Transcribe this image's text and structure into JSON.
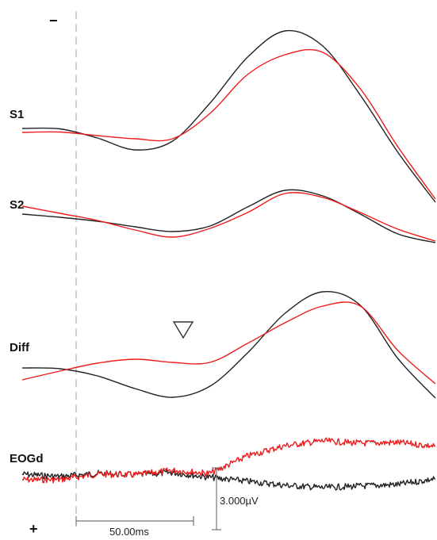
{
  "chart_data": {
    "type": "line",
    "title": "",
    "xlabel": "",
    "ylabel": "",
    "colors": {
      "series_a": "#222222",
      "series_b": "#ee1c1c",
      "stimulus_line": "#aaaaaa",
      "scale": "#777777"
    },
    "polarity": {
      "negative": "−",
      "positive": "+"
    },
    "scale_bars": {
      "time": "50.00ms",
      "amplitude": "3.000µV"
    },
    "channels": [
      {
        "name": "S1",
        "x": [
          0,
          50,
          100,
          150,
          200,
          250,
          300,
          350,
          400,
          450,
          500,
          550
        ],
        "series": [
          {
            "values": [
              0.0,
              -0.05,
              -1.2,
              -2.7,
              -1.6,
              3.2,
              9.0,
              12.3,
              10.4,
              4.2,
              -3.0,
              -9.3
            ]
          },
          {
            "values": [
              -0.5,
              -0.45,
              -0.9,
              -1.3,
              -1.3,
              1.9,
              6.8,
              9.3,
              9.6,
              5.0,
              -2.3,
              -8.9
            ]
          }
        ]
      },
      {
        "name": "S2",
        "x": [
          0,
          50,
          100,
          150,
          200,
          250,
          300,
          350,
          400,
          450,
          500,
          550
        ],
        "series": [
          {
            "values": [
              0.0,
              -0.4,
              -0.9,
              -1.6,
              -2.2,
              -1.5,
              0.9,
              3.0,
              2.3,
              0.0,
              -2.5,
              -3.6
            ]
          },
          {
            "values": [
              1.0,
              0.1,
              -0.8,
              -2.0,
              -2.9,
              -1.8,
              0.2,
              2.6,
              2.1,
              0.2,
              -1.9,
              -3.4
            ]
          }
        ]
      },
      {
        "name": "Diff",
        "x": [
          0,
          50,
          100,
          150,
          200,
          250,
          300,
          350,
          400,
          450,
          500,
          550
        ],
        "series": [
          {
            "values": [
              0.0,
              -0.1,
              -1.0,
              -2.6,
              -3.7,
              -2.3,
              1.9,
              6.9,
              9.6,
              7.9,
              1.2,
              -3.8
            ]
          },
          {
            "values": [
              -1.5,
              -0.4,
              0.6,
              1.1,
              0.7,
              0.7,
              3.1,
              5.7,
              7.8,
              7.8,
              2.2,
              -2.0
            ]
          }
        ]
      },
      {
        "name": "EOGd",
        "x": [
          0,
          50,
          100,
          150,
          200,
          250,
          300,
          350,
          400,
          450,
          500,
          550
        ],
        "series": [
          {
            "values": [
              0.0,
              -0.3,
              0.1,
              -0.1,
              0.2,
              -0.4,
              -0.9,
              -1.4,
              -1.7,
              -1.5,
              -1.3,
              -0.6
            ]
          },
          {
            "values": [
              -0.7,
              -0.7,
              0.0,
              -0.1,
              0.5,
              0.1,
              2.3,
              3.6,
              4.2,
              3.9,
              4.0,
              3.5
            ]
          }
        ]
      }
    ]
  }
}
